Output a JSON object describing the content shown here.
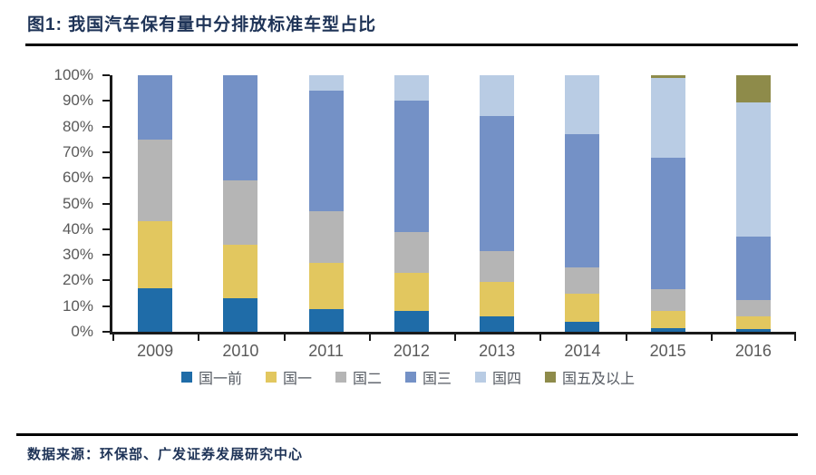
{
  "header": {
    "title": "图1:  我国汽车保有量中分排放标准车型占比"
  },
  "footer": {
    "source": "数据来源：环保部、广发证券发展研究中心"
  },
  "colors": {
    "title_navy": "#1e3357",
    "axis_label_gray": "#595959",
    "axis_line": "#1a1a1a",
    "rule_black": "#000000"
  },
  "chart_data": {
    "type": "bar",
    "stacked": true,
    "title": "我国汽车保有量中分排放标准车型占比",
    "xlabel": "",
    "ylabel": "",
    "ylim": [
      0,
      100
    ],
    "grid": false,
    "legend_position": "bottom",
    "y_ticks": [
      "0%",
      "10%",
      "20%",
      "30%",
      "40%",
      "50%",
      "60%",
      "70%",
      "80%",
      "90%",
      "100%"
    ],
    "categories": [
      "2009",
      "2010",
      "2011",
      "2012",
      "2013",
      "2014",
      "2015",
      "2016"
    ],
    "series": [
      {
        "name": "国一前",
        "color": "#1f6ca8",
        "values": [
          17,
          13,
          9,
          8,
          6,
          4,
          1.5,
          1
        ]
      },
      {
        "name": "国一",
        "color": "#e2c75f",
        "values": [
          26,
          21,
          18,
          15,
          13.5,
          11,
          6.5,
          5
        ]
      },
      {
        "name": "国二",
        "color": "#b5b5b5",
        "values": [
          32,
          25,
          20,
          16,
          12,
          10,
          8.5,
          6.5
        ]
      },
      {
        "name": "国三",
        "color": "#7491c6",
        "values": [
          25,
          41,
          47,
          51,
          52.5,
          52,
          51.5,
          24.5
        ]
      },
      {
        "name": "国四",
        "color": "#b9cce4",
        "values": [
          0,
          0,
          6,
          10,
          16,
          23,
          31,
          52.5
        ]
      },
      {
        "name": "国五及以上",
        "color": "#8e8b4a",
        "values": [
          0,
          0,
          0,
          0,
          0,
          0,
          1,
          10.5
        ]
      }
    ]
  }
}
